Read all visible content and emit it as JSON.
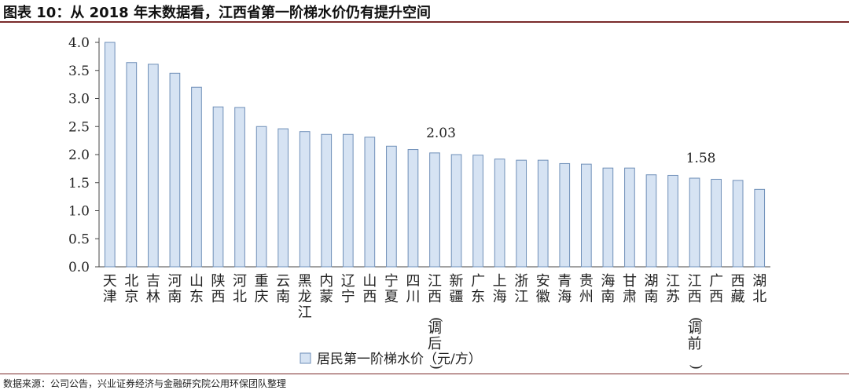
{
  "header": {
    "title": "图表 10：从 2018 年末数据看，江西省第一阶梯水价仍有提升空间"
  },
  "footer": {
    "source": "数据来源：公司公告，兴业证券经济与金融研究院公用环保团队整理"
  },
  "colors": {
    "bar_fill": "#d6e3f3",
    "bar_stroke": "#6f8fb8",
    "axis": "#444444",
    "rule": "#7a2a2a"
  },
  "chart_data": {
    "type": "bar",
    "ylim": [
      0,
      4.0
    ],
    "yticks": [
      "0.0",
      "0.5",
      "1.0",
      "1.5",
      "2.0",
      "2.5",
      "3.0",
      "3.5",
      "4.0"
    ],
    "grid": false,
    "legend_position": "bottom",
    "categories": [
      "天津",
      "北京",
      "吉林",
      "河南",
      "山东",
      "陕西",
      "河北",
      "重庆",
      "云南",
      "黑龙江",
      "内蒙",
      "辽宁",
      "山西",
      "宁夏",
      "四川",
      "江西(调后)",
      "新疆",
      "广东",
      "上海",
      "浙江",
      "安徽",
      "青海",
      "贵州",
      "海南",
      "甘肃",
      "湖南",
      "江苏",
      "江西(调前)",
      "广西",
      "西藏",
      "湖北"
    ],
    "series": [
      {
        "name": "居民第一阶梯水价（元/方）",
        "values": [
          4.0,
          3.64,
          3.61,
          3.45,
          3.2,
          2.85,
          2.84,
          2.5,
          2.46,
          2.41,
          2.36,
          2.36,
          2.31,
          2.15,
          2.09,
          2.03,
          2.0,
          1.99,
          1.92,
          1.9,
          1.9,
          1.84,
          1.83,
          1.76,
          1.76,
          1.64,
          1.63,
          1.58,
          1.56,
          1.54,
          1.38
        ]
      }
    ],
    "annotations": [
      {
        "category_index": 15,
        "text": "2.03"
      },
      {
        "category_index": 27,
        "text": "1.58"
      }
    ]
  }
}
